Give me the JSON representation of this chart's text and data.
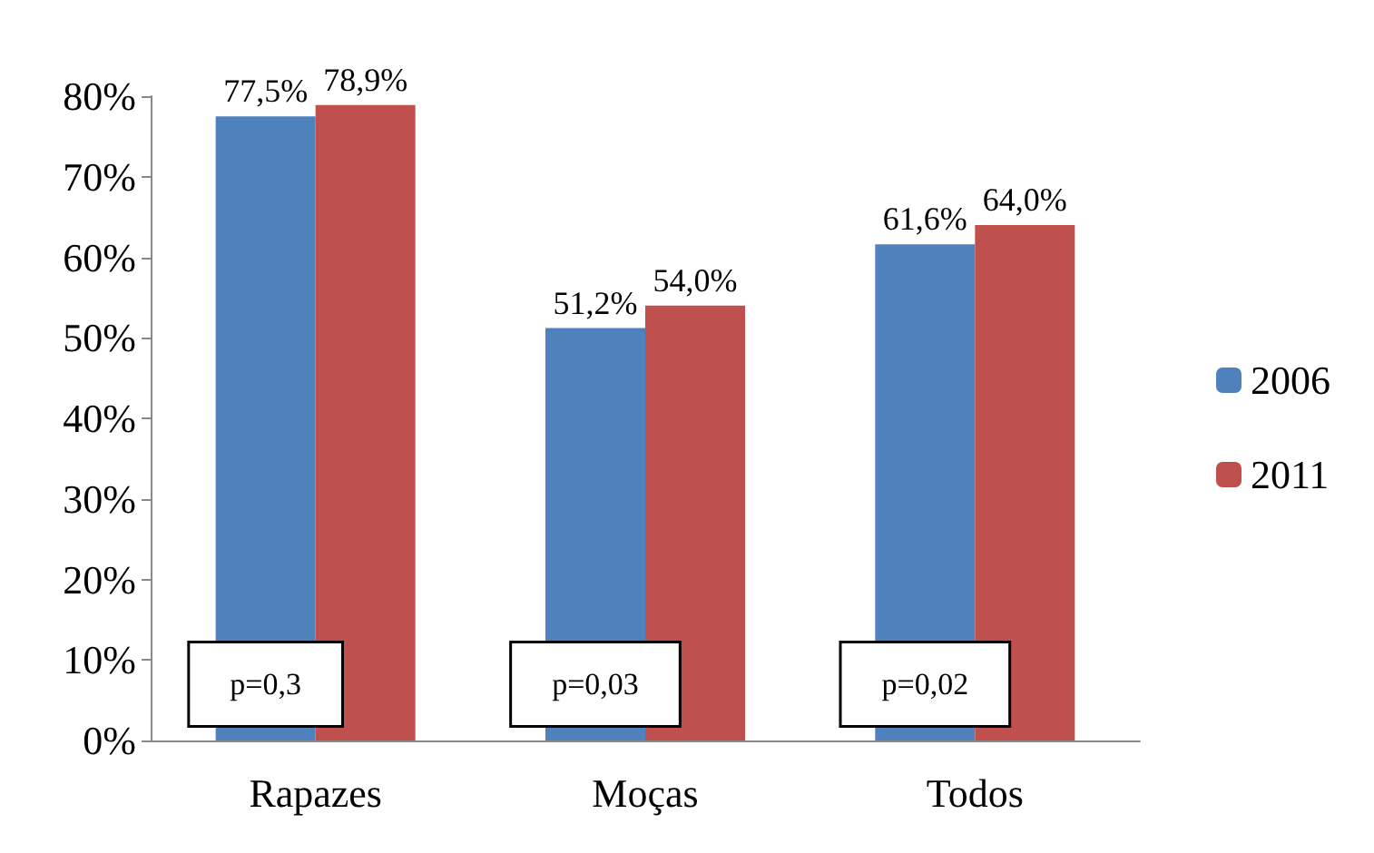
{
  "chart_data": {
    "type": "bar",
    "categories": [
      "Rapazes",
      "Moças",
      "Todos"
    ],
    "series": [
      {
        "name": "2006",
        "color": "#4f81bd",
        "values": [
          77.5,
          51.2,
          61.6
        ],
        "value_labels": [
          "77,5%",
          "51,2%",
          "61,6%"
        ]
      },
      {
        "name": "2011",
        "color": "#c0504d",
        "values": [
          78.9,
          54.0,
          64.0
        ],
        "value_labels": [
          "78,9%",
          "54,0%",
          "64,0%"
        ]
      }
    ],
    "ylim": [
      0,
      80
    ],
    "yticks": [
      {
        "value": 0,
        "label": "0%"
      },
      {
        "value": 10,
        "label": "10%"
      },
      {
        "value": 20,
        "label": "20%"
      },
      {
        "value": 30,
        "label": "30%"
      },
      {
        "value": 40,
        "label": "40%"
      },
      {
        "value": 50,
        "label": "50%"
      },
      {
        "value": 60,
        "label": "60%"
      },
      {
        "value": 70,
        "label": "70%"
      },
      {
        "value": 80,
        "label": "80%"
      }
    ],
    "annotations": [
      {
        "text": "p=0,3",
        "x": "Rapazes",
        "y": 7
      },
      {
        "text": "p=0,03",
        "x": "Moças",
        "y": 7
      },
      {
        "text": "p=0,02",
        "x": "Todos",
        "y": 7
      }
    ],
    "grid": false,
    "legend": "right"
  }
}
